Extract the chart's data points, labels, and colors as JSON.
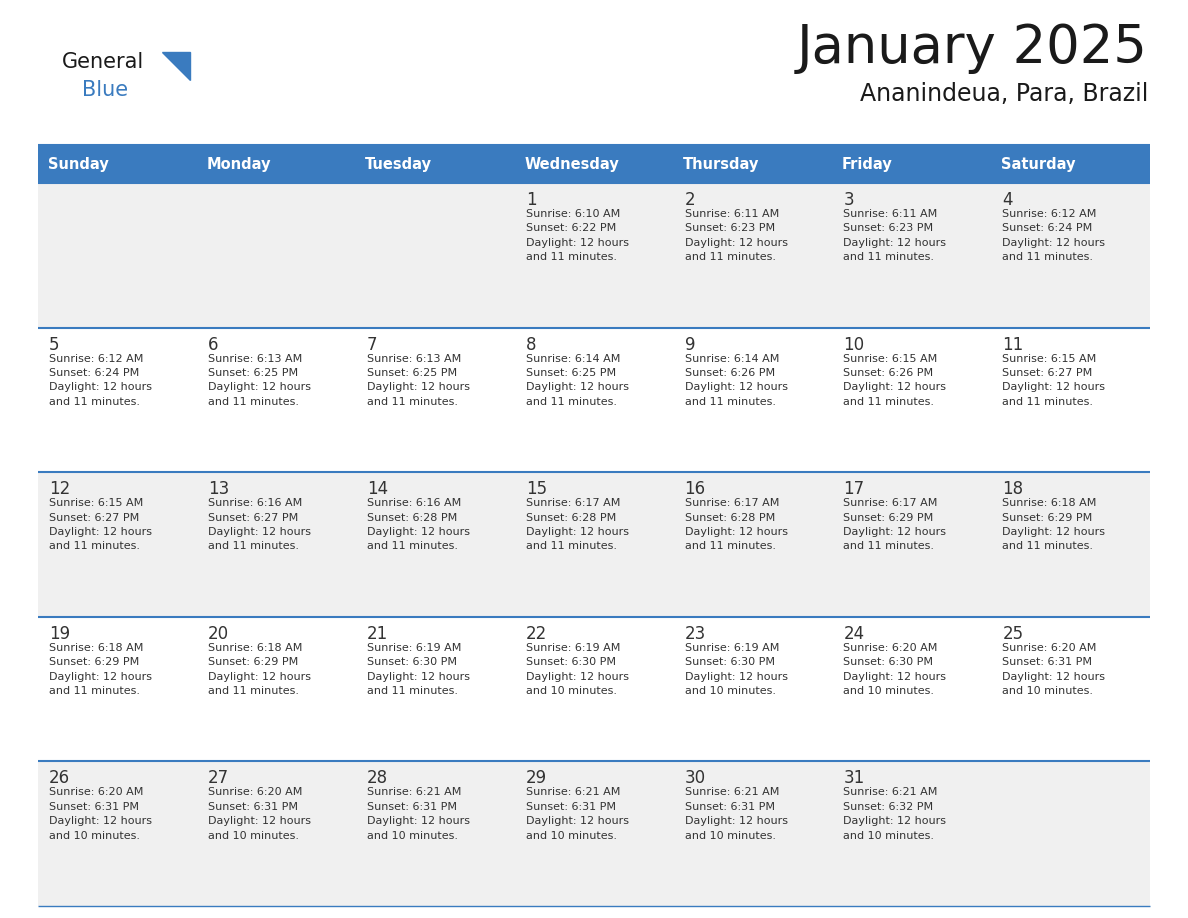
{
  "title": "January 2025",
  "subtitle": "Ananindeua, Para, Brazil",
  "header_bg_color": "#3a7bbf",
  "header_text_color": "#ffffff",
  "row_bg_even": "#f0f0f0",
  "row_bg_odd": "#ffffff",
  "days_of_week": [
    "Sunday",
    "Monday",
    "Tuesday",
    "Wednesday",
    "Thursday",
    "Friday",
    "Saturday"
  ],
  "calendar_data": [
    [
      null,
      null,
      null,
      {
        "day": 1,
        "sunrise": "6:10 AM",
        "sunset": "6:22 PM",
        "daylight": "12 hours\nand 11 minutes."
      },
      {
        "day": 2,
        "sunrise": "6:11 AM",
        "sunset": "6:23 PM",
        "daylight": "12 hours\nand 11 minutes."
      },
      {
        "day": 3,
        "sunrise": "6:11 AM",
        "sunset": "6:23 PM",
        "daylight": "12 hours\nand 11 minutes."
      },
      {
        "day": 4,
        "sunrise": "6:12 AM",
        "sunset": "6:24 PM",
        "daylight": "12 hours\nand 11 minutes."
      }
    ],
    [
      {
        "day": 5,
        "sunrise": "6:12 AM",
        "sunset": "6:24 PM",
        "daylight": "12 hours\nand 11 minutes."
      },
      {
        "day": 6,
        "sunrise": "6:13 AM",
        "sunset": "6:25 PM",
        "daylight": "12 hours\nand 11 minutes."
      },
      {
        "day": 7,
        "sunrise": "6:13 AM",
        "sunset": "6:25 PM",
        "daylight": "12 hours\nand 11 minutes."
      },
      {
        "day": 8,
        "sunrise": "6:14 AM",
        "sunset": "6:25 PM",
        "daylight": "12 hours\nand 11 minutes."
      },
      {
        "day": 9,
        "sunrise": "6:14 AM",
        "sunset": "6:26 PM",
        "daylight": "12 hours\nand 11 minutes."
      },
      {
        "day": 10,
        "sunrise": "6:15 AM",
        "sunset": "6:26 PM",
        "daylight": "12 hours\nand 11 minutes."
      },
      {
        "day": 11,
        "sunrise": "6:15 AM",
        "sunset": "6:27 PM",
        "daylight": "12 hours\nand 11 minutes."
      }
    ],
    [
      {
        "day": 12,
        "sunrise": "6:15 AM",
        "sunset": "6:27 PM",
        "daylight": "12 hours\nand 11 minutes."
      },
      {
        "day": 13,
        "sunrise": "6:16 AM",
        "sunset": "6:27 PM",
        "daylight": "12 hours\nand 11 minutes."
      },
      {
        "day": 14,
        "sunrise": "6:16 AM",
        "sunset": "6:28 PM",
        "daylight": "12 hours\nand 11 minutes."
      },
      {
        "day": 15,
        "sunrise": "6:17 AM",
        "sunset": "6:28 PM",
        "daylight": "12 hours\nand 11 minutes."
      },
      {
        "day": 16,
        "sunrise": "6:17 AM",
        "sunset": "6:28 PM",
        "daylight": "12 hours\nand 11 minutes."
      },
      {
        "day": 17,
        "sunrise": "6:17 AM",
        "sunset": "6:29 PM",
        "daylight": "12 hours\nand 11 minutes."
      },
      {
        "day": 18,
        "sunrise": "6:18 AM",
        "sunset": "6:29 PM",
        "daylight": "12 hours\nand 11 minutes."
      }
    ],
    [
      {
        "day": 19,
        "sunrise": "6:18 AM",
        "sunset": "6:29 PM",
        "daylight": "12 hours\nand 11 minutes."
      },
      {
        "day": 20,
        "sunrise": "6:18 AM",
        "sunset": "6:29 PM",
        "daylight": "12 hours\nand 11 minutes."
      },
      {
        "day": 21,
        "sunrise": "6:19 AM",
        "sunset": "6:30 PM",
        "daylight": "12 hours\nand 11 minutes."
      },
      {
        "day": 22,
        "sunrise": "6:19 AM",
        "sunset": "6:30 PM",
        "daylight": "12 hours\nand 10 minutes."
      },
      {
        "day": 23,
        "sunrise": "6:19 AM",
        "sunset": "6:30 PM",
        "daylight": "12 hours\nand 10 minutes."
      },
      {
        "day": 24,
        "sunrise": "6:20 AM",
        "sunset": "6:30 PM",
        "daylight": "12 hours\nand 10 minutes."
      },
      {
        "day": 25,
        "sunrise": "6:20 AM",
        "sunset": "6:31 PM",
        "daylight": "12 hours\nand 10 minutes."
      }
    ],
    [
      {
        "day": 26,
        "sunrise": "6:20 AM",
        "sunset": "6:31 PM",
        "daylight": "12 hours\nand 10 minutes."
      },
      {
        "day": 27,
        "sunrise": "6:20 AM",
        "sunset": "6:31 PM",
        "daylight": "12 hours\nand 10 minutes."
      },
      {
        "day": 28,
        "sunrise": "6:21 AM",
        "sunset": "6:31 PM",
        "daylight": "12 hours\nand 10 minutes."
      },
      {
        "day": 29,
        "sunrise": "6:21 AM",
        "sunset": "6:31 PM",
        "daylight": "12 hours\nand 10 minutes."
      },
      {
        "day": 30,
        "sunrise": "6:21 AM",
        "sunset": "6:31 PM",
        "daylight": "12 hours\nand 10 minutes."
      },
      {
        "day": 31,
        "sunrise": "6:21 AM",
        "sunset": "6:32 PM",
        "daylight": "12 hours\nand 10 minutes."
      },
      null
    ]
  ],
  "logo_triangle_color": "#3a7bbf",
  "title_color": "#1a1a1a",
  "subtitle_color": "#1a1a1a",
  "cell_text_color": "#333333",
  "divider_color": "#3a7bbf"
}
